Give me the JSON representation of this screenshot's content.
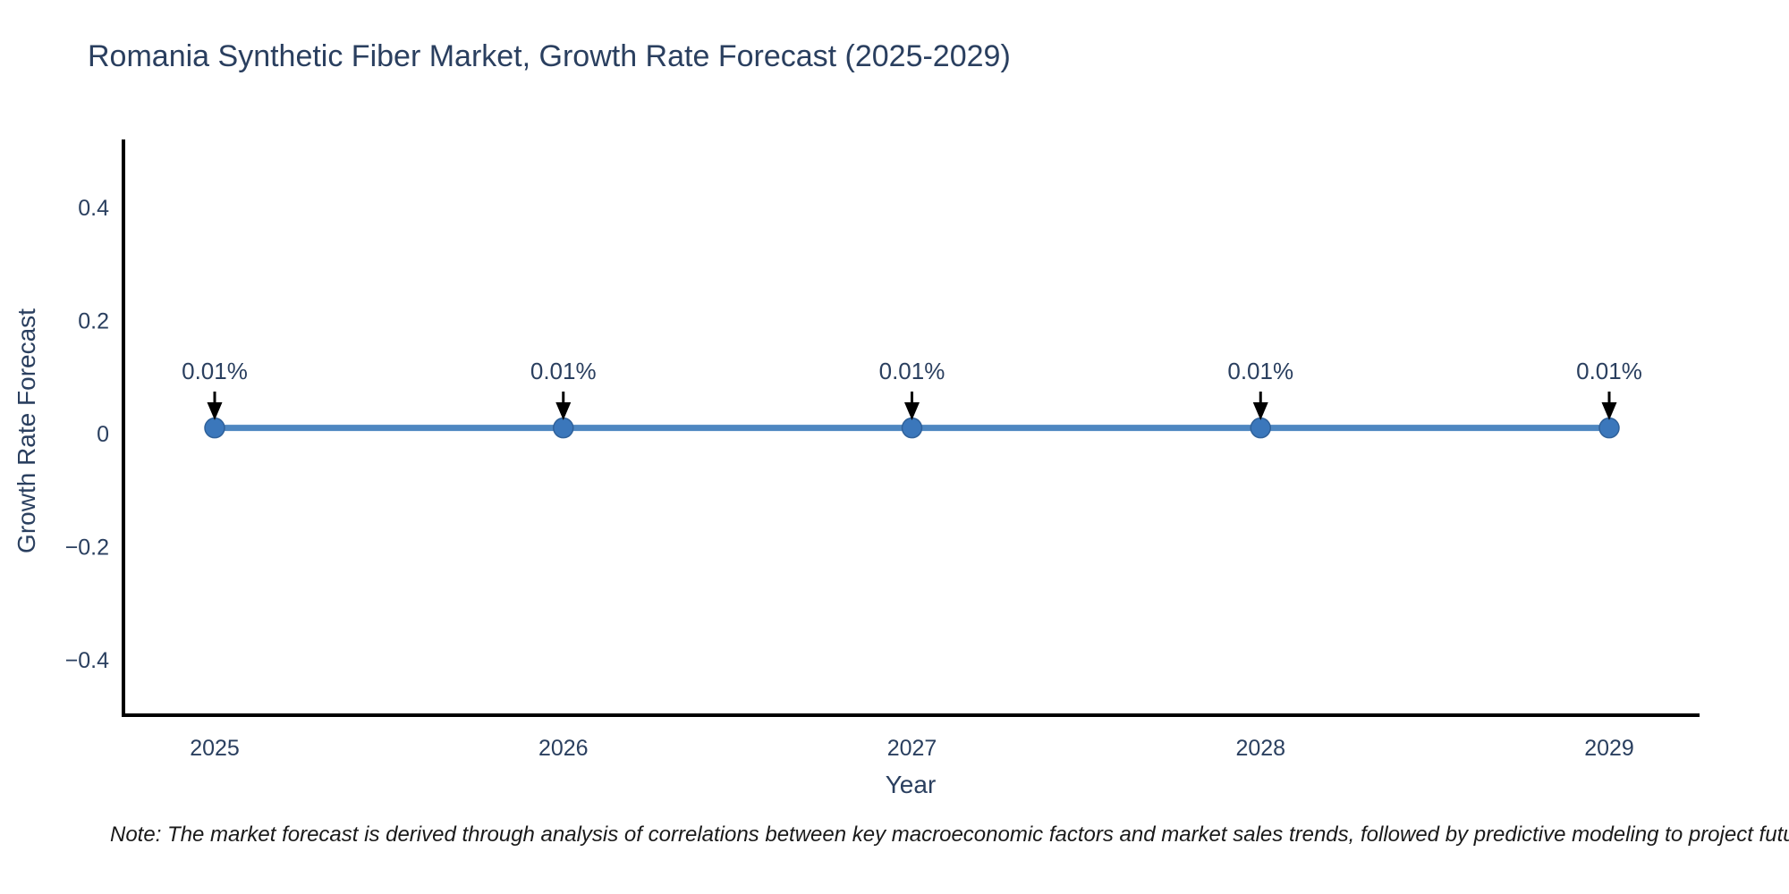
{
  "title": "Romania Synthetic Fiber Market, Growth Rate Forecast (2025-2029)",
  "note": "Note: The market forecast is derived through analysis of correlations between key macroeconomic factors and market sales trends, followed by predictive modeling to project future sales.",
  "chart_data": {
    "type": "line",
    "title": "Romania Synthetic Fiber Market, Growth Rate Forecast (2025-2029)",
    "xlabel": "Year",
    "ylabel": "Growth Rate Forecast",
    "x": [
      2025,
      2026,
      2027,
      2028,
      2029
    ],
    "x_tick_labels": [
      "2025",
      "2026",
      "2027",
      "2028",
      "2029"
    ],
    "series": [
      {
        "name": "Growth Rate Forecast",
        "values": [
          0.01,
          0.01,
          0.01,
          0.01,
          0.01
        ]
      }
    ],
    "point_labels": [
      "0.01%",
      "0.01%",
      "0.01%",
      "0.01%",
      "0.01%"
    ],
    "y_ticks": [
      {
        "value": 0.4,
        "label": "0.4"
      },
      {
        "value": 0.2,
        "label": "0.2"
      },
      {
        "value": 0,
        "label": "0"
      },
      {
        "value": -0.2,
        "label": "−0.2"
      },
      {
        "value": -0.4,
        "label": "−0.4"
      }
    ],
    "ylim": [
      -0.51,
      0.51
    ],
    "grid": false,
    "legend": "none",
    "colors": {
      "line": "#4e87c1",
      "marker": "#3b77bb",
      "marker_edge": "#2f619a",
      "annotation_arrow": "#000000",
      "axis": "#000000",
      "text": "#2a3f5f"
    }
  }
}
